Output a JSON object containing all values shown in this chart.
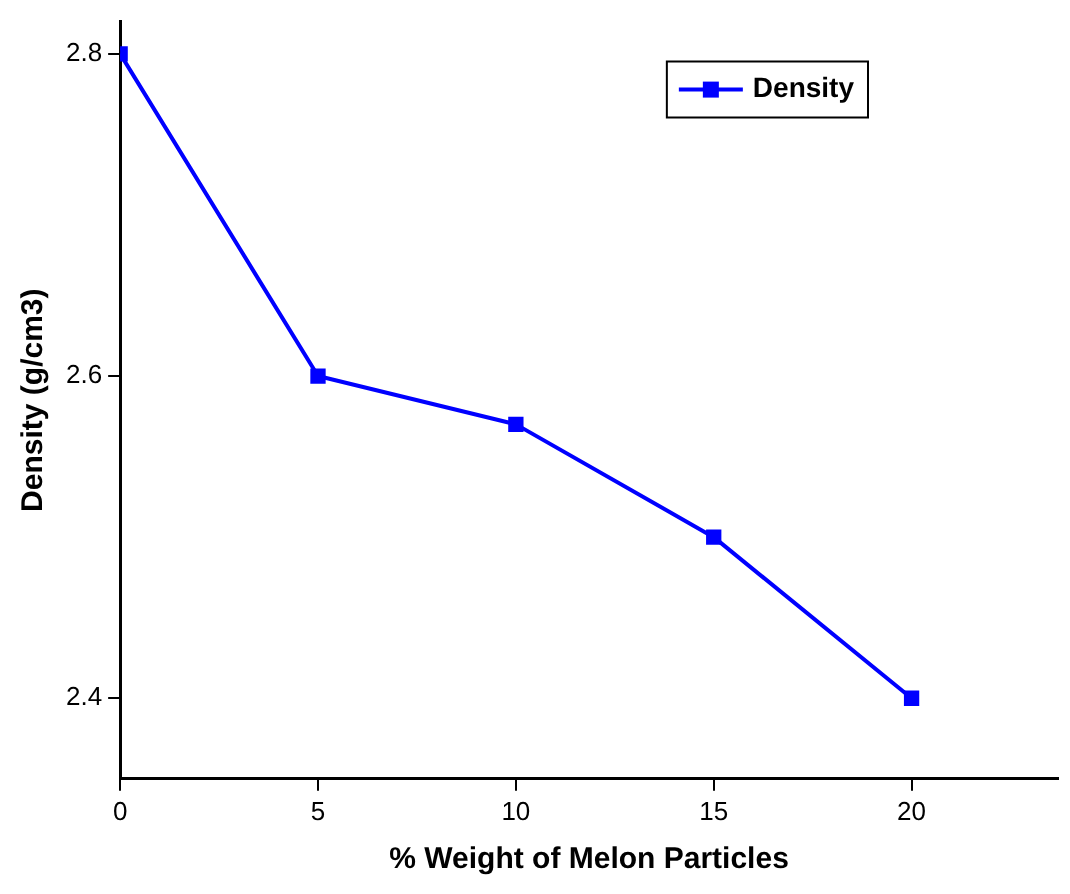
{
  "chart_data": {
    "type": "line",
    "xlabel": "% Weight of Melon Particles",
    "ylabel": "Density (g/cm3)",
    "x": [
      0,
      5,
      10,
      15,
      20
    ],
    "series": [
      {
        "name": "Density",
        "color": "#0000ff",
        "values": [
          2.8,
          2.6,
          2.57,
          2.5,
          2.4
        ]
      }
    ],
    "xlim": [
      0,
      23.7
    ],
    "xticks": [
      0,
      5,
      10,
      15,
      20
    ],
    "ylim": [
      2.35,
      2.82
    ],
    "yticks": [
      2.4,
      2.6,
      2.8
    ],
    "grid": false,
    "legend": "top right",
    "marker": "square",
    "line_style": "solid"
  }
}
